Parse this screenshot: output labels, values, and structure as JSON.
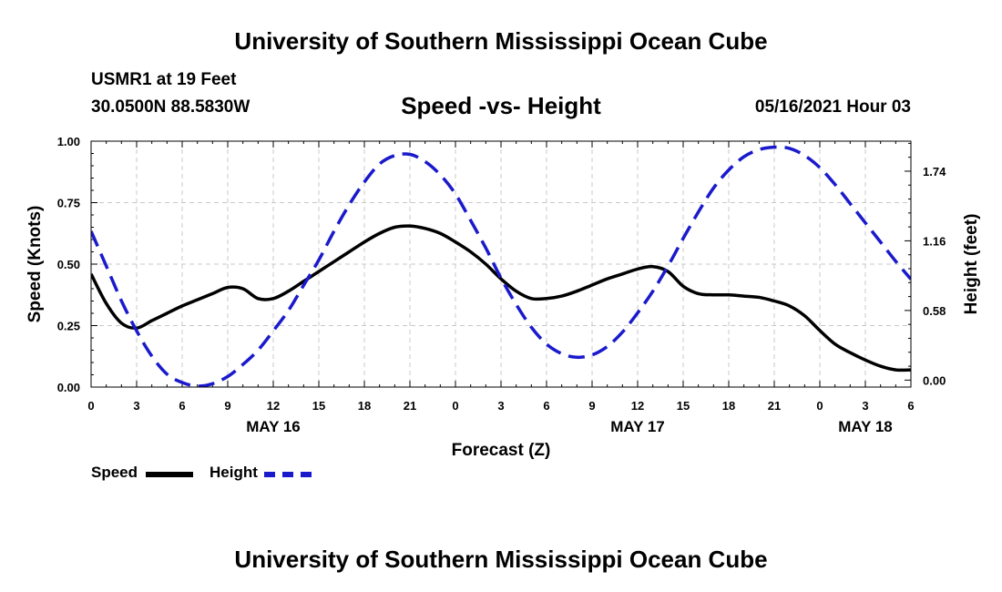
{
  "header": {
    "title": "University of Southern Mississippi Ocean Cube",
    "station": "USMR1 at 19 Feet",
    "coords": "30.0500N  88.5830W",
    "subtitle": "Speed -vs- Height",
    "datetime": "05/16/2021 Hour 03"
  },
  "footer": {
    "title": "University of Southern Mississippi Ocean Cube"
  },
  "legend": {
    "speed_label": "Speed",
    "height_label": "Height"
  },
  "colors": {
    "speed": "#000000",
    "height": "#1a1acc",
    "grid": "#c8c8c8"
  },
  "chart_data": {
    "type": "line",
    "title": "Speed -vs- Height",
    "xlabel": "Forecast (Z)",
    "ylabel": "Speed (Knots)",
    "y2label": "Height (feet)",
    "x_unit": "hours since May 16 00Z",
    "xlim": [
      0,
      54
    ],
    "ylim": [
      0,
      1.0
    ],
    "y2lim": [
      -0.058,
      1.99
    ],
    "x_ticks": [
      0,
      3,
      6,
      9,
      12,
      15,
      18,
      21,
      24,
      27,
      30,
      33,
      36,
      39,
      42,
      45,
      48,
      51,
      54
    ],
    "x_tick_labels": [
      "0",
      "3",
      "6",
      "9",
      "12",
      "15",
      "18",
      "21",
      "0",
      "3",
      "6",
      "9",
      "12",
      "15",
      "18",
      "21",
      "0",
      "3",
      "6"
    ],
    "date_labels": [
      {
        "x": 12,
        "text": "MAY 16"
      },
      {
        "x": 36,
        "text": "MAY 17"
      },
      {
        "x": 51,
        "text": "MAY 18"
      }
    ],
    "y_ticks": [
      0,
      0.25,
      0.5,
      0.75,
      1.0
    ],
    "y_tick_labels": [
      "0.00",
      "0.25",
      "0.50",
      "0.75",
      "1.00"
    ],
    "y2_ticks": [
      0,
      0.58,
      1.16,
      1.74
    ],
    "y2_tick_labels": [
      "0.00",
      "0.58",
      "1.16",
      "1.74"
    ],
    "grid": true,
    "series": [
      {
        "name": "Speed",
        "axis": "left",
        "style": "solid",
        "x": [
          0,
          1,
          2,
          3,
          4,
          5,
          6,
          7,
          8,
          9,
          10,
          11,
          12,
          13,
          14,
          15,
          16,
          17,
          18,
          19,
          20,
          21,
          22,
          23,
          24,
          25,
          26,
          27,
          28,
          29,
          30,
          31,
          32,
          33,
          34,
          35,
          36,
          37,
          38,
          39,
          40,
          41,
          42,
          43,
          44,
          45,
          46,
          47,
          48,
          49,
          50,
          51,
          52,
          53,
          54
        ],
        "values": [
          0.46,
          0.34,
          0.26,
          0.24,
          0.27,
          0.3,
          0.33,
          0.355,
          0.38,
          0.405,
          0.4,
          0.36,
          0.36,
          0.39,
          0.43,
          0.47,
          0.51,
          0.55,
          0.59,
          0.625,
          0.65,
          0.655,
          0.645,
          0.625,
          0.59,
          0.55,
          0.5,
          0.44,
          0.39,
          0.36,
          0.36,
          0.37,
          0.39,
          0.415,
          0.44,
          0.46,
          0.48,
          0.49,
          0.47,
          0.41,
          0.38,
          0.375,
          0.375,
          0.37,
          0.365,
          0.35,
          0.33,
          0.29,
          0.23,
          0.175,
          0.14,
          0.11,
          0.085,
          0.07,
          0.07
        ]
      },
      {
        "name": "Height",
        "axis": "right",
        "style": "dashed",
        "x": [
          0,
          1,
          2,
          3,
          4,
          5,
          6,
          7,
          8,
          9,
          10,
          11,
          12,
          13,
          14,
          15,
          16,
          17,
          18,
          19,
          20,
          21,
          22,
          23,
          24,
          25,
          26,
          27,
          28,
          29,
          30,
          31,
          32,
          33,
          34,
          35,
          36,
          37,
          38,
          39,
          40,
          41,
          42,
          43,
          44,
          45,
          46,
          47,
          48,
          49,
          50,
          51,
          52,
          53,
          54
        ],
        "values": [
          1.24,
          0.95,
          0.66,
          0.41,
          0.2,
          0.05,
          -0.02,
          -0.05,
          -0.03,
          0.03,
          0.13,
          0.25,
          0.41,
          0.58,
          0.79,
          1.0,
          1.24,
          1.46,
          1.65,
          1.8,
          1.87,
          1.88,
          1.82,
          1.71,
          1.55,
          1.33,
          1.1,
          0.85,
          0.63,
          0.44,
          0.3,
          0.22,
          0.19,
          0.21,
          0.28,
          0.4,
          0.56,
          0.74,
          0.95,
          1.18,
          1.4,
          1.6,
          1.75,
          1.86,
          1.92,
          1.94,
          1.93,
          1.87,
          1.77,
          1.63,
          1.47,
          1.31,
          1.15,
          0.99,
          0.84
        ]
      }
    ]
  }
}
